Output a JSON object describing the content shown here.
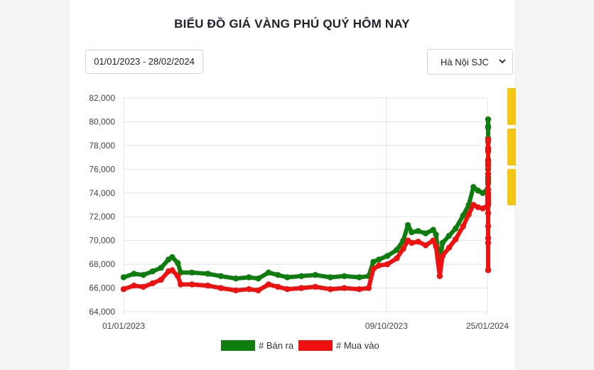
{
  "header": {
    "title": "BIỂU ĐỒ GIÁ VÀNG PHÚ QUÝ HÔM NAY"
  },
  "controls": {
    "date_range": "01/01/2023 - 28/02/2024",
    "location_select": "Hà Nội SJC",
    "select_icon": "chevron-down-icon"
  },
  "colors": {
    "sell": "#0d7d0d",
    "buy": "#f01010",
    "accent_tab": "#f3c614",
    "grid": "#e3e3e3"
  },
  "chart_data": {
    "type": "line",
    "x_axis_type": "date",
    "x_ticks": [
      "01/01/2023",
      "09/10/2023",
      "25/01/2024"
    ],
    "ylim": [
      64000,
      82000
    ],
    "y_ticks": [
      "64,000",
      "66,000",
      "68,000",
      "70,000",
      "72,000",
      "74,000",
      "76,000",
      "78,000",
      "80,000",
      "82,000"
    ],
    "legend_position": "bottom-center",
    "grid": true,
    "series": [
      {
        "name": "# Bán ra",
        "color": "#0d7d0d",
        "points": [
          [
            "2023-01-01",
            66900
          ],
          [
            "2023-01-12",
            67200
          ],
          [
            "2023-01-22",
            67100
          ],
          [
            "2023-02-01",
            67400
          ],
          [
            "2023-02-10",
            67700
          ],
          [
            "2023-02-18",
            68400
          ],
          [
            "2023-02-22",
            68600
          ],
          [
            "2023-02-28",
            68100
          ],
          [
            "2023-03-03",
            67300
          ],
          [
            "2023-03-15",
            67300
          ],
          [
            "2023-04-01",
            67200
          ],
          [
            "2023-04-15",
            67000
          ],
          [
            "2023-05-01",
            66800
          ],
          [
            "2023-05-15",
            66900
          ],
          [
            "2023-05-25",
            66800
          ],
          [
            "2023-06-05",
            67300
          ],
          [
            "2023-06-15",
            67100
          ],
          [
            "2023-06-25",
            66900
          ],
          [
            "2023-07-10",
            67000
          ],
          [
            "2023-07-25",
            67100
          ],
          [
            "2023-08-10",
            66900
          ],
          [
            "2023-08-25",
            67000
          ],
          [
            "2023-09-10",
            66900
          ],
          [
            "2023-09-20",
            67000
          ],
          [
            "2023-09-25",
            68200
          ],
          [
            "2023-10-01",
            68400
          ],
          [
            "2023-10-10",
            68700
          ],
          [
            "2023-10-20",
            69200
          ],
          [
            "2023-10-27",
            70000
          ],
          [
            "2023-11-01",
            71300
          ],
          [
            "2023-11-05",
            70700
          ],
          [
            "2023-11-12",
            70800
          ],
          [
            "2023-11-20",
            70600
          ],
          [
            "2023-11-28",
            70900
          ],
          [
            "2023-12-01",
            70500
          ],
          [
            "2023-12-05",
            68000
          ],
          [
            "2023-12-08",
            69800
          ],
          [
            "2023-12-15",
            70400
          ],
          [
            "2023-12-22",
            71000
          ],
          [
            "2023-12-30",
            72100
          ],
          [
            "2024-01-05",
            73000
          ],
          [
            "2024-01-10",
            74500
          ],
          [
            "2024-01-15",
            74200
          ],
          [
            "2024-01-20",
            74000
          ],
          [
            "2024-01-25",
            74300
          ],
          [
            "2024-01-29",
            74800
          ],
          [
            "2024-02-01",
            78300
          ],
          [
            "2024-02-05",
            77600
          ],
          [
            "2024-02-08",
            79600
          ],
          [
            "2024-02-10",
            80200
          ],
          [
            "2024-02-13",
            79500
          ],
          [
            "2024-02-15",
            78600
          ],
          [
            "2024-02-17",
            76600
          ],
          [
            "2024-02-19",
            73200
          ],
          [
            "2024-02-21",
            74000
          ],
          [
            "2024-02-22",
            75100
          ],
          [
            "2024-02-23",
            73600
          ],
          [
            "2024-02-24",
            75000
          ],
          [
            "2024-02-25",
            75300
          ],
          [
            "2024-02-26",
            76300
          ],
          [
            "2024-02-27",
            76000
          ],
          [
            "2024-02-27",
            76800
          ],
          [
            "2024-02-28",
            76500
          ]
        ]
      },
      {
        "name": "# Mua vào",
        "color": "#f01010",
        "points": [
          [
            "2023-01-01",
            65900
          ],
          [
            "2023-01-12",
            66200
          ],
          [
            "2023-01-22",
            66100
          ],
          [
            "2023-02-01",
            66400
          ],
          [
            "2023-02-10",
            66700
          ],
          [
            "2023-02-18",
            67400
          ],
          [
            "2023-02-22",
            67500
          ],
          [
            "2023-02-28",
            67000
          ],
          [
            "2023-03-03",
            66300
          ],
          [
            "2023-03-15",
            66300
          ],
          [
            "2023-04-01",
            66200
          ],
          [
            "2023-04-15",
            66000
          ],
          [
            "2023-05-01",
            65800
          ],
          [
            "2023-05-15",
            65900
          ],
          [
            "2023-05-25",
            65800
          ],
          [
            "2023-06-05",
            66300
          ],
          [
            "2023-06-15",
            66100
          ],
          [
            "2023-06-25",
            65900
          ],
          [
            "2023-07-10",
            66000
          ],
          [
            "2023-07-25",
            66100
          ],
          [
            "2023-08-10",
            65900
          ],
          [
            "2023-08-25",
            66000
          ],
          [
            "2023-09-10",
            65900
          ],
          [
            "2023-09-20",
            66000
          ],
          [
            "2023-09-25",
            67600
          ],
          [
            "2023-10-01",
            67900
          ],
          [
            "2023-10-10",
            68000
          ],
          [
            "2023-10-20",
            68500
          ],
          [
            "2023-10-27",
            69300
          ],
          [
            "2023-11-01",
            70000
          ],
          [
            "2023-11-05",
            69800
          ],
          [
            "2023-11-12",
            69900
          ],
          [
            "2023-11-20",
            69600
          ],
          [
            "2023-11-28",
            70000
          ],
          [
            "2023-12-01",
            69500
          ],
          [
            "2023-12-05",
            67000
          ],
          [
            "2023-12-08",
            68700
          ],
          [
            "2023-12-15",
            69400
          ],
          [
            "2023-12-22",
            70100
          ],
          [
            "2023-12-30",
            71200
          ],
          [
            "2024-01-05",
            72200
          ],
          [
            "2024-01-10",
            73000
          ],
          [
            "2024-01-15",
            72800
          ],
          [
            "2024-01-20",
            72700
          ],
          [
            "2024-01-25",
            72900
          ],
          [
            "2024-01-29",
            73400
          ],
          [
            "2024-02-01",
            76700
          ],
          [
            "2024-02-05",
            76300
          ],
          [
            "2024-02-08",
            77800
          ],
          [
            "2024-02-10",
            78500
          ],
          [
            "2024-02-13",
            77500
          ],
          [
            "2024-02-15",
            75600
          ],
          [
            "2024-02-17",
            70200
          ],
          [
            "2024-02-19",
            73200
          ],
          [
            "2024-02-21",
            69800
          ],
          [
            "2024-02-22",
            67500
          ],
          [
            "2024-02-23",
            71200
          ],
          [
            "2024-02-24",
            72300
          ],
          [
            "2024-02-25",
            73000
          ],
          [
            "2024-02-26",
            73900
          ],
          [
            "2024-02-27",
            73700
          ],
          [
            "2024-02-27",
            74300
          ],
          [
            "2024-02-28",
            74000
          ]
        ]
      }
    ]
  }
}
